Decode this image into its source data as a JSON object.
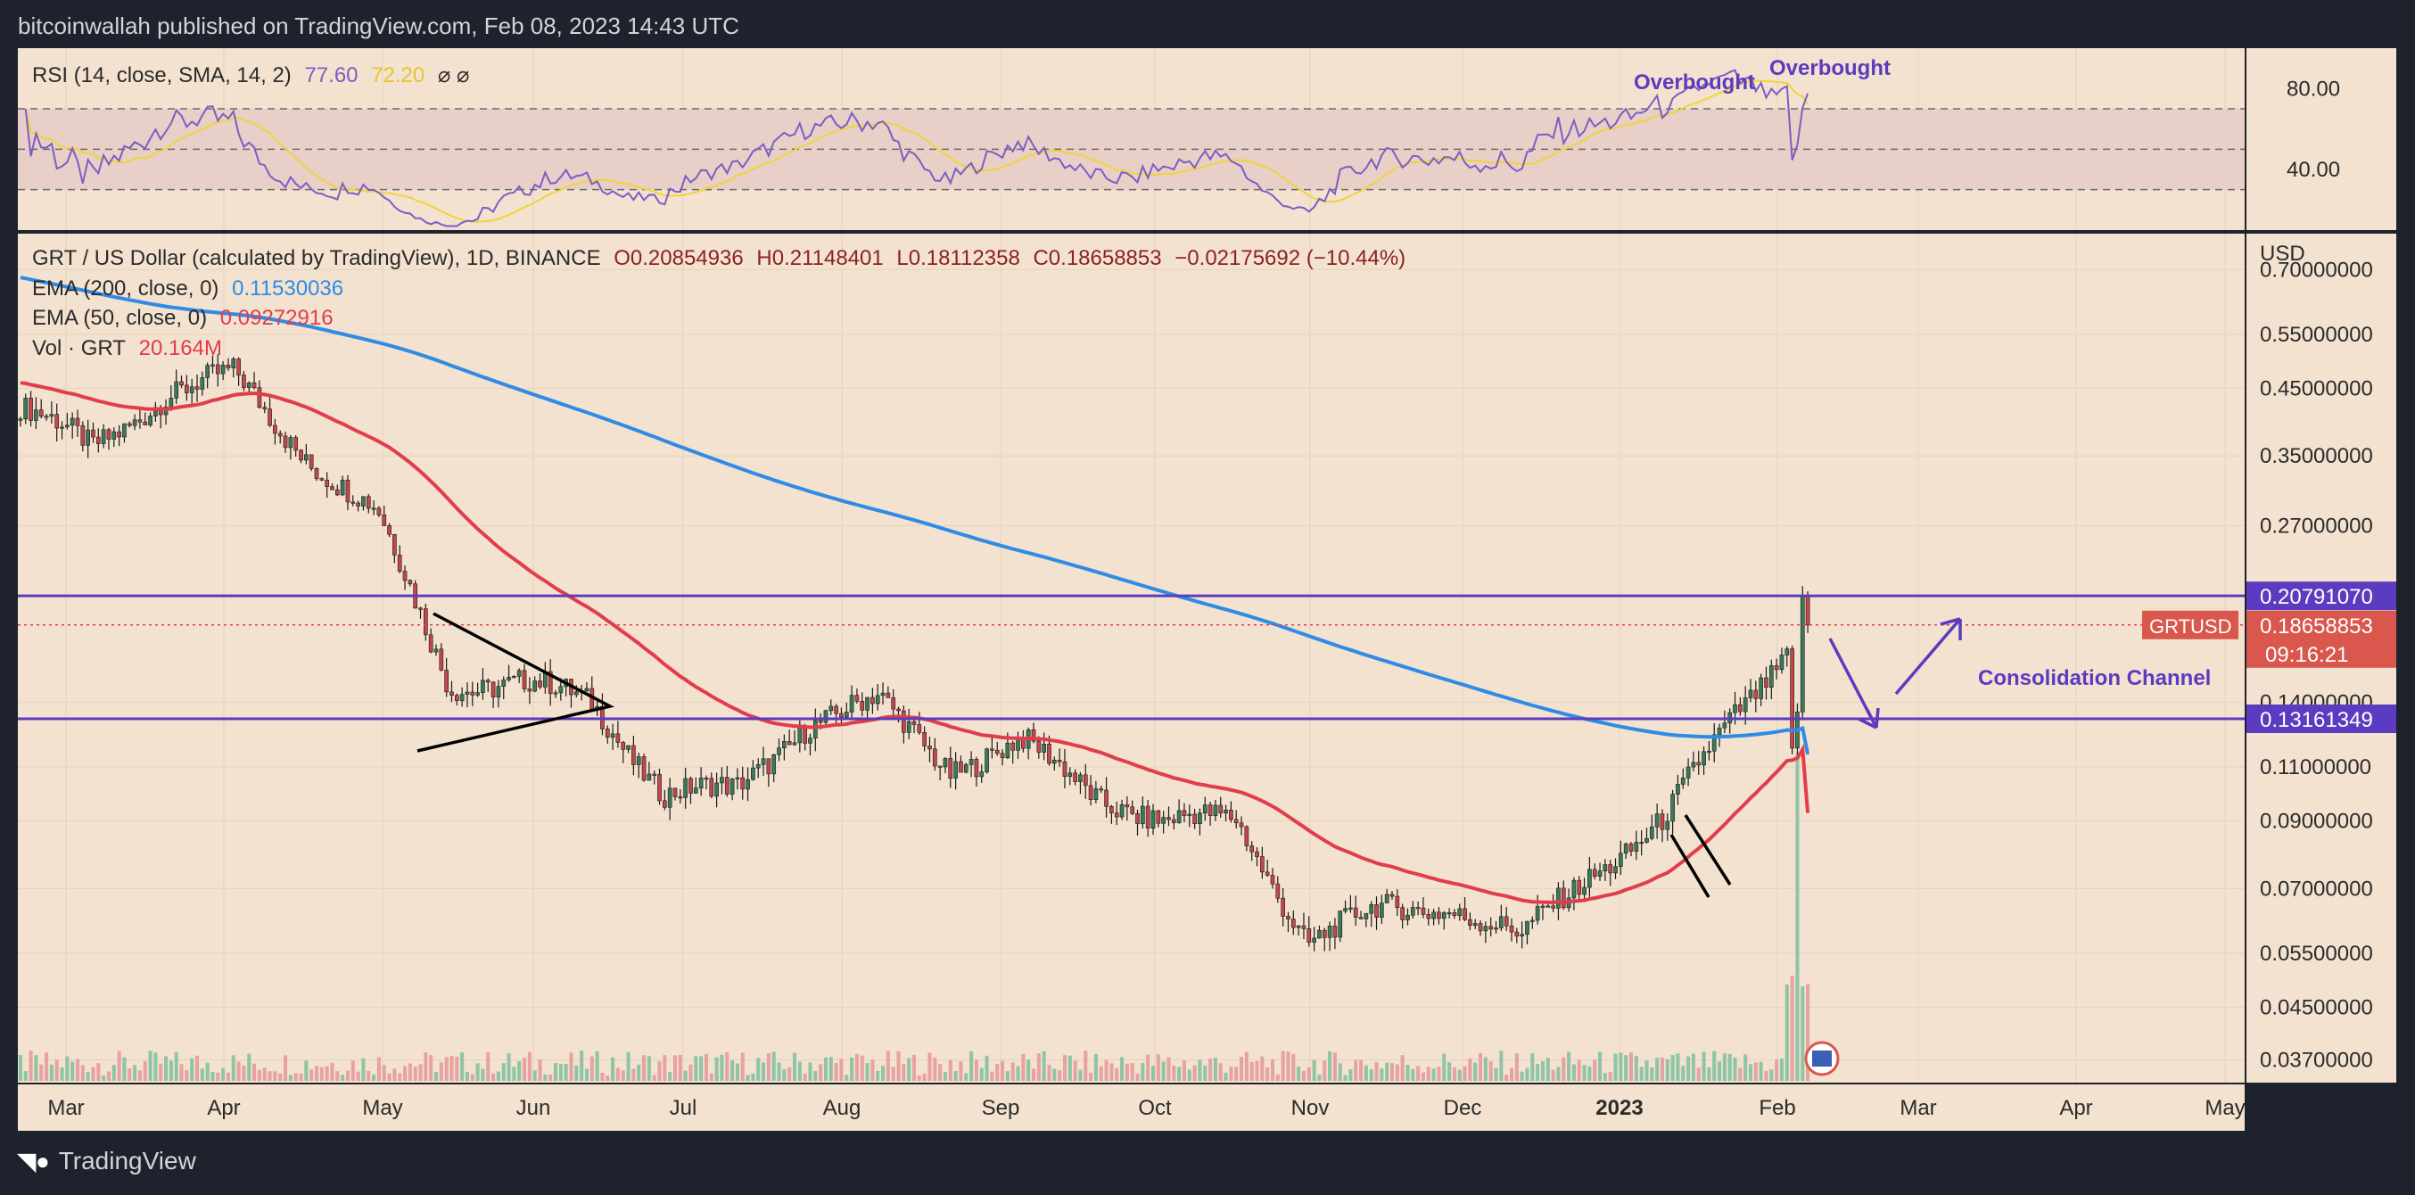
{
  "header": {
    "publish_line": "bitcoinwallah published on TradingView.com, Feb 08, 2023 14:43 UTC"
  },
  "footer": {
    "brand": "TradingView"
  },
  "colors": {
    "background": "#f3e2cf",
    "frame": "#1e222d",
    "ema200": "#2f8be6",
    "ema50": "#e23d4b",
    "level_line": "#5b3bbf",
    "annotation": "#5b3bbf",
    "candle_up": "#3a7a5b",
    "candle_down": "#c4474a",
    "rsi_line": "#7b5ec6",
    "rsi_sma": "#f0d43a"
  },
  "rsi_legend": {
    "label": "RSI (14, close, SMA, 14, 2)",
    "value1": "77.60",
    "value2": "72.20",
    "icons": "⌀ ⌀"
  },
  "price_legend": {
    "symbol": "GRT / US Dollar (calculated by TradingView), 1D, BINANCE",
    "open": "O0.20854936",
    "high": "H0.21148401",
    "low": "L0.18112358",
    "close": "C0.18658853",
    "change": "−0.02175692 (−10.44%)",
    "ema200_label": "EMA (200, close, 0)",
    "ema200_value": "0.11530036",
    "ema50_label": "EMA (50, close, 0)",
    "ema50_value": "0.09272916",
    "vol_label": "Vol · GRT",
    "vol_value": "20.164M"
  },
  "annotations": {
    "overbought_1": "Overbought",
    "overbought_2": "Overbought",
    "consolidation": "Consolidation Channel"
  },
  "price_axis": {
    "currency": "USD",
    "ticks": [
      "0.70000000",
      "0.55000000",
      "0.45000000",
      "0.35000000",
      "0.27000000",
      "0.14000000",
      "0.11000000",
      "0.09000000",
      "0.07000000",
      "0.05500000",
      "0.04500000",
      "0.03700000"
    ],
    "tag_resistance": "0.20791070",
    "tag_price": "0.18658853",
    "tag_timer": "09:16:21",
    "tag_symbol": "GRTUSD",
    "tag_support": "0.13161349"
  },
  "rsi_axis": {
    "ticks": [
      "80.00",
      "40.00"
    ]
  },
  "time_axis": {
    "labels": [
      "Mar",
      "Apr",
      "May",
      "Jun",
      "Jul",
      "Aug",
      "Sep",
      "Oct",
      "Nov",
      "Dec",
      "2023",
      "Feb",
      "Mar",
      "Apr",
      "May"
    ]
  },
  "chart_data": {
    "type": "candlestick",
    "title": "GRT / US Dollar (calculated by TradingView), 1D, BINANCE",
    "y_scale": "log",
    "ylim": [
      0.034,
      0.8
    ],
    "levels": {
      "resistance": 0.2079107,
      "support": 0.13161349,
      "last_price": 0.18658853
    },
    "x_labels": [
      "Mar",
      "Apr",
      "May",
      "Jun",
      "Jul",
      "Aug",
      "Sep",
      "Oct",
      "Nov",
      "Dec",
      "2023",
      "Feb",
      "Mar",
      "Apr",
      "May"
    ],
    "approx_closes": {
      "points": [
        [
          "Mar",
          0.42
        ],
        [
          "Mar-mid",
          0.36
        ],
        [
          "Apr",
          0.44
        ],
        [
          "Apr-mid",
          0.47
        ],
        [
          "May",
          0.35
        ],
        [
          "May-mid",
          0.28
        ],
        [
          "May-end",
          0.15
        ],
        [
          "Jun",
          0.15
        ],
        [
          "Jun-mid",
          0.14
        ],
        [
          "Jul",
          0.1
        ],
        [
          "Jul-mid",
          0.1
        ],
        [
          "Aug",
          0.13
        ],
        [
          "Aug-mid",
          0.14
        ],
        [
          "Sep",
          0.11
        ],
        [
          "Sep-mid",
          0.12
        ],
        [
          "Oct",
          0.1
        ],
        [
          "Oct-mid",
          0.09
        ],
        [
          "Nov",
          0.09
        ],
        [
          "Nov-mid",
          0.058
        ],
        [
          "Dec",
          0.064
        ],
        [
          "Dec-mid",
          0.066
        ],
        [
          "2023",
          0.058
        ],
        [
          "Jan-mid",
          0.075
        ],
        [
          "Jan-end",
          0.09
        ],
        [
          "Feb",
          0.135
        ],
        [
          "Feb-08",
          0.18658853
        ]
      ]
    },
    "ema200": {
      "last": 0.11530036
    },
    "ema50": {
      "last": 0.09272916
    },
    "rsi": {
      "last": 77.6,
      "sma_last": 72.2,
      "levels": [
        70,
        50,
        30
      ]
    }
  }
}
